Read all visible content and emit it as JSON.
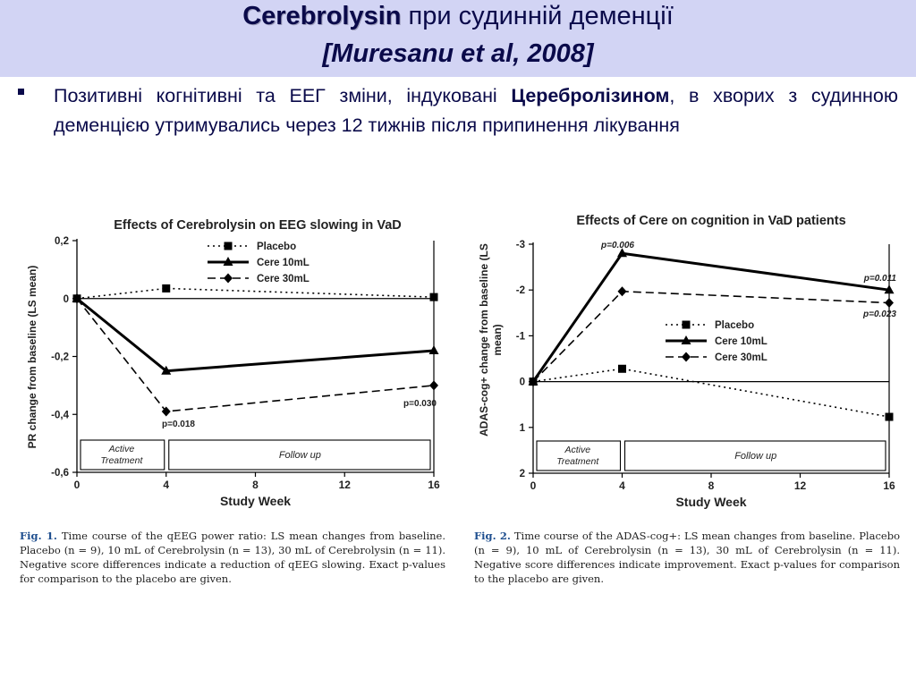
{
  "header": {
    "title_bold": "Cerebrolysin",
    "title_rest": " при судинній деменції",
    "citation": "[Muresanu et al, 2008]"
  },
  "bullet": {
    "text_before": "Позитивні когнітивні та ЕЕГ зміни, індуковані ",
    "text_bold": "Церебролізином",
    "text_after": ", в хворих з судинною деменцією утримувались через 12 тижнів після припинення лікування"
  },
  "colors": {
    "header_bg": "#d2d4f4",
    "title_text": "#0a0a4a",
    "fig_label": "#1f4f8f"
  },
  "chart_data": [
    {
      "type": "line",
      "title": "Effects of Cerebrolysin on EEG slowing in VaD",
      "xlabel": "Study Week",
      "ylabel": "PR change from baseline (LS mean)",
      "x": [
        0,
        4,
        16
      ],
      "x_ticks": [
        "0",
        "4",
        "8",
        "12",
        "16"
      ],
      "y_ticks": [
        "0,2",
        "0",
        "-0,2",
        "-0,4",
        "-0,6"
      ],
      "ylim": [
        -0.6,
        0.2
      ],
      "legend_position": "top",
      "series": [
        {
          "name": "Placebo",
          "style": "dotted",
          "marker": "square",
          "values": [
            0,
            0.035,
            0.005
          ]
        },
        {
          "name": "Cere 10mL",
          "style": "solid",
          "marker": "triangle",
          "values": [
            0,
            -0.25,
            -0.18
          ]
        },
        {
          "name": "Cere 30mL",
          "style": "dashed",
          "marker": "diamond",
          "values": [
            0,
            -0.39,
            -0.3
          ]
        }
      ],
      "annotations": [
        "p=0.018",
        "p=0.030"
      ],
      "phase_labels": [
        "Active Treatment",
        "Follow up"
      ],
      "caption": {
        "label": "Fig. 1.",
        "text": " Time course of the qEEG power ratio: LS mean changes from baseline. Placebo (n = 9), 10 mL of Cerebrolysin (n = 13), 30 mL of Cerebrolysin (n = 11). Negative score differences indicate a reduction of qEEG slowing. Exact p-values for comparison to the placebo are given."
      }
    },
    {
      "type": "line",
      "title": "Effects of Cere on cognition in VaD patients",
      "xlabel": "Study Week",
      "ylabel": "ADAS-cog+ change from baseline (LS mean)",
      "x": [
        0,
        4,
        16
      ],
      "x_ticks": [
        "0",
        "4",
        "8",
        "12",
        "16"
      ],
      "y_ticks": [
        "-3",
        "-2",
        "-1",
        "0",
        "1",
        "2"
      ],
      "ylim": [
        2,
        -3
      ],
      "y_inverted": true,
      "legend_position": "middle-left",
      "series": [
        {
          "name": "Placebo",
          "style": "dotted",
          "marker": "square",
          "values": [
            0,
            -0.28,
            0.77
          ]
        },
        {
          "name": "Cere 10mL",
          "style": "solid",
          "marker": "triangle",
          "values": [
            0,
            -2.8,
            -2.0
          ]
        },
        {
          "name": "Cere 30mL",
          "style": "dashed",
          "marker": "diamond",
          "values": [
            0,
            -1.97,
            -1.72
          ]
        }
      ],
      "annotations": [
        "p=0.006",
        "p=0.011",
        "p=0.023"
      ],
      "phase_labels": [
        "Active Treatment",
        "Follow up"
      ],
      "caption": {
        "label": "Fig. 2.",
        "text": " Time course of the ADAS-cog+: LS mean changes from baseline. Placebo (n = 9), 10 mL of Cerebrolysin (n = 13), 30 mL of Cerebrolysin (n = 11). Negative score differences indicate improvement. Exact p-values for comparison to the placebo are given."
      }
    }
  ]
}
